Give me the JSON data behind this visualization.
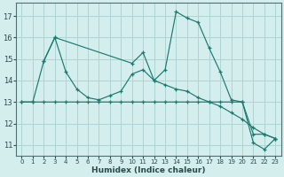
{
  "title": "",
  "xlabel": "Humidex (Indice chaleur)",
  "ylabel": "",
  "bg_color": "#d4eeee",
  "grid_color": "#aed4d4",
  "line_color": "#1a7a6e",
  "series": [
    {
      "x": [
        0,
        1,
        2,
        3,
        4,
        5,
        6,
        7,
        8,
        9,
        10,
        11,
        12,
        13,
        14,
        15,
        16,
        17,
        18,
        19,
        20,
        21,
        22,
        23
      ],
      "y": [
        13.0,
        13.0,
        13.0,
        13.0,
        13.0,
        13.0,
        13.0,
        13.0,
        13.0,
        13.0,
        13.0,
        13.0,
        13.0,
        13.0,
        13.0,
        13.0,
        13.0,
        13.0,
        13.0,
        13.0,
        13.0,
        11.5,
        11.5,
        11.3
      ]
    },
    {
      "x": [
        2,
        3,
        10,
        11,
        12,
        13,
        14,
        15,
        16,
        17,
        18,
        19,
        20,
        21,
        22,
        23
      ],
      "y": [
        14.9,
        16.0,
        14.8,
        15.3,
        14.0,
        14.5,
        17.2,
        16.9,
        16.7,
        15.5,
        14.4,
        13.1,
        13.0,
        11.1,
        10.8,
        11.3
      ]
    },
    {
      "x": [
        0,
        1,
        2,
        3,
        4,
        5,
        6,
        7,
        8,
        9,
        10,
        11,
        12,
        13,
        14,
        15,
        16,
        17,
        18,
        19,
        20,
        21,
        22,
        23
      ],
      "y": [
        13.0,
        13.0,
        14.9,
        16.0,
        14.4,
        13.6,
        13.2,
        13.1,
        13.3,
        13.5,
        14.3,
        14.5,
        14.0,
        13.8,
        13.6,
        13.5,
        13.2,
        13.0,
        12.8,
        12.5,
        12.2,
        11.8,
        11.5,
        11.3
      ]
    }
  ],
  "xlim": [
    -0.5,
    23.5
  ],
  "ylim": [
    10.5,
    17.6
  ],
  "yticks": [
    11,
    12,
    13,
    14,
    15,
    16,
    17
  ],
  "xticks": [
    0,
    1,
    2,
    3,
    4,
    5,
    6,
    7,
    8,
    9,
    10,
    11,
    12,
    13,
    14,
    15,
    16,
    17,
    18,
    19,
    20,
    21,
    22,
    23
  ]
}
